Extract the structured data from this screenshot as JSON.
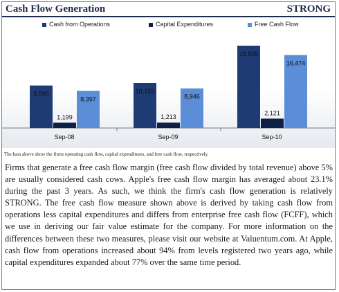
{
  "header": {
    "title": "Cash Flow Generation",
    "rating": "STRONG"
  },
  "colors": {
    "cfo": "#1f3b73",
    "capex": "#0d1f45",
    "fcf": "#5b8ed6",
    "accent": "#1f2a4d"
  },
  "chart_data": {
    "type": "bar",
    "categories": [
      "Sep-08",
      "Sep-09",
      "Sep-10"
    ],
    "series": [
      {
        "name": "Cash from Operations",
        "values": [
          9596,
          10159,
          18595
        ]
      },
      {
        "name": "Capital Expenditures",
        "values": [
          1199,
          1213,
          2121
        ]
      },
      {
        "name": "Free Cash Flow",
        "values": [
          8397,
          8946,
          16474
        ]
      }
    ],
    "value_labels": [
      [
        "9,596",
        "10,159",
        "18,595"
      ],
      [
        "1,199",
        "1,213",
        "2,121"
      ],
      [
        "8,397",
        "8,946",
        "16,474"
      ]
    ],
    "legend_position": "top",
    "grid": false
  },
  "caption": "The bars above show the firms operating cash flow, capital expenditures, and free cash flow, respectively.",
  "body_text": "Firms that generate a free cash flow margin (free cash flow divided by total revenue) above 5% are usually considered cash cows. Apple's free cash flow margin has averaged about 23.1% during the past 3 years. As such, we think the firm's cash flow generation is relatively STRONG. The free cash flow measure shown above is derived by taking cash flow from operations less capital expenditures and differs from enterprise free cash flow (FCFF), which we use in deriving our fair value estimate for the company. For more information on the differences between these two measures, please visit our website at Valuentum.com. At Apple, cash flow from operations increased about 94% from levels registered two years ago, while capital expenditures expanded about 77% over the same time period."
}
